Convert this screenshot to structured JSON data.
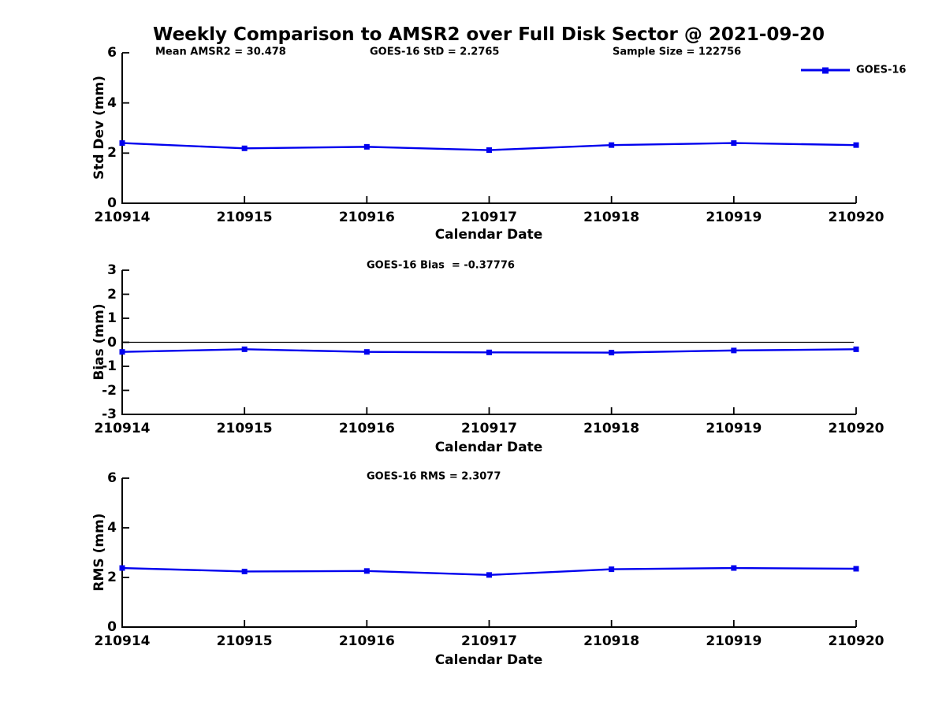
{
  "title": "Weekly Comparison to AMSR2 over Full Disk Sector @ 2021-09-20",
  "colors": {
    "series_line": "#0000ee",
    "axis": "#000000",
    "zero_line": "#000000"
  },
  "legend": {
    "label": "GOES-16"
  },
  "chart_data": [
    {
      "type": "line",
      "name": "std-dev-panel",
      "annotations": [
        "Mean AMSR2 = 30.478",
        "GOES-16 StD = 2.2765",
        "Sample Size = 122756"
      ],
      "ylabel": "Std Dev (mm)",
      "xlabel": "Calendar Date",
      "categories": [
        "210914",
        "210915",
        "210916",
        "210917",
        "210918",
        "210919",
        "210920"
      ],
      "yticks": [
        0,
        2,
        4,
        6
      ],
      "ylim": [
        0,
        6
      ],
      "zero_line": false,
      "legend_position": "top-right-outside",
      "grid": false,
      "series": [
        {
          "name": "GOES-16",
          "marker": "square",
          "values": [
            2.4,
            2.19,
            2.25,
            2.12,
            2.32,
            2.4,
            2.32
          ]
        }
      ]
    },
    {
      "type": "line",
      "name": "bias-panel",
      "annotations": [
        "GOES-16 Bias  = -0.37776"
      ],
      "ylabel": "Bias (mm)",
      "xlabel": "Calendar Date",
      "categories": [
        "210914",
        "210915",
        "210916",
        "210917",
        "210918",
        "210919",
        "210920"
      ],
      "yticks": [
        3,
        2,
        1,
        0,
        -1,
        -2,
        -3
      ],
      "ylim": [
        -3,
        3
      ],
      "zero_line": true,
      "grid": false,
      "series": [
        {
          "name": "GOES-16",
          "marker": "square",
          "values": [
            -0.4,
            -0.29,
            -0.4,
            -0.42,
            -0.43,
            -0.34,
            -0.29
          ]
        }
      ]
    },
    {
      "type": "line",
      "name": "rms-panel",
      "annotations": [
        "GOES-16 RMS = 2.3077"
      ],
      "ylabel": "RMS (mm)",
      "xlabel": "Calendar Date",
      "categories": [
        "210914",
        "210915",
        "210916",
        "210917",
        "210918",
        "210919",
        "210920"
      ],
      "yticks": [
        0,
        2,
        4,
        6
      ],
      "ylim": [
        0,
        6
      ],
      "zero_line": false,
      "grid": false,
      "series": [
        {
          "name": "GOES-16",
          "marker": "square",
          "values": [
            2.38,
            2.24,
            2.26,
            2.1,
            2.33,
            2.38,
            2.35
          ]
        }
      ]
    }
  ]
}
